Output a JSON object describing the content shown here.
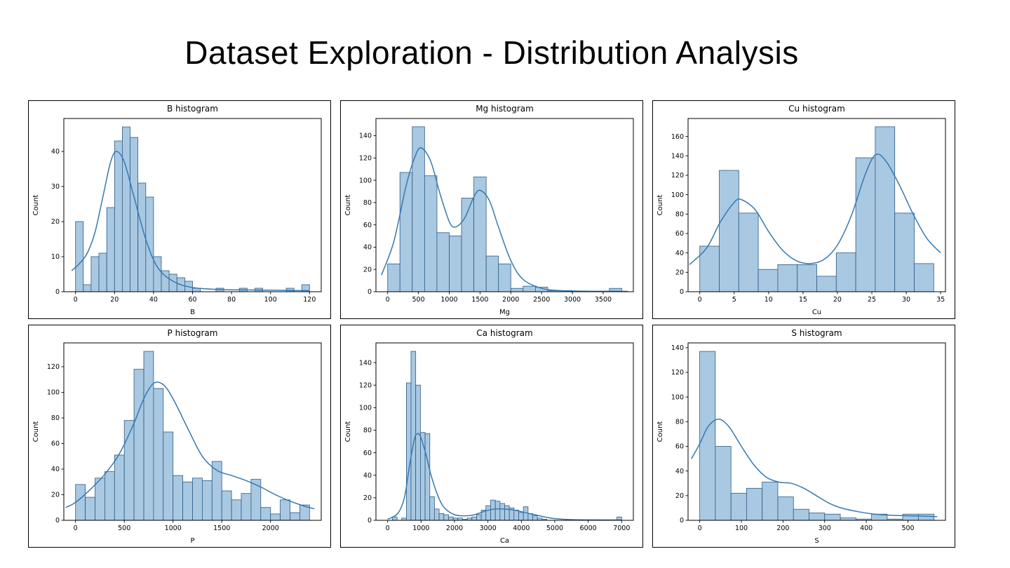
{
  "page": {
    "title": "Dataset Exploration - Distribution Analysis"
  },
  "style": {
    "bar_fill": "#a9c8e2",
    "bar_edge": "#2e5c85",
    "kde_color": "#3579b1",
    "spine_color": "#000000",
    "text_color": "#000000"
  },
  "chart_data": [
    {
      "type": "bar",
      "variant": "histogram+kde",
      "title": "B histogram",
      "xlabel": "B",
      "ylabel": "Count",
      "bin_start": 0,
      "bin_width": 4,
      "counts": [
        20,
        2,
        10,
        11,
        24,
        43,
        47,
        44,
        31,
        27,
        10,
        6,
        5,
        4,
        3,
        1,
        0,
        0,
        1,
        0,
        0,
        1,
        0,
        1,
        0,
        0,
        0,
        1,
        0,
        2
      ],
      "kde": {
        "x": [
          -2,
          2,
          6,
          10,
          14,
          18,
          21,
          25,
          30,
          36,
          42,
          50,
          60,
          75,
          90,
          105,
          120
        ],
        "y": [
          6,
          8,
          11,
          17,
          27,
          37,
          40,
          37,
          27,
          15,
          7,
          3,
          1.2,
          0.6,
          0.5,
          0.4,
          0.3
        ]
      },
      "xlim": [
        -6,
        126
      ],
      "ylim": [
        0,
        49.4
      ],
      "xticks": [
        0,
        20,
        40,
        60,
        80,
        100,
        120
      ],
      "yticks": [
        0,
        10,
        20,
        30,
        40
      ],
      "grid": false,
      "legend": null
    },
    {
      "type": "bar",
      "variant": "histogram+kde",
      "title": "Mg histogram",
      "xlabel": "Mg",
      "ylabel": "Count",
      "bin_start": 0,
      "bin_width": 200,
      "counts": [
        25,
        107,
        148,
        104,
        53,
        50,
        84,
        103,
        32,
        25,
        3,
        5,
        4,
        1,
        1,
        0,
        0,
        0,
        3
      ],
      "kde": {
        "x": [
          -100,
          100,
          300,
          450,
          550,
          700,
          850,
          1000,
          1100,
          1250,
          1400,
          1500,
          1650,
          1800,
          2000,
          2200,
          2500,
          2800,
          3200,
          3600,
          3900
        ],
        "y": [
          15,
          45,
          95,
          122,
          129,
          117,
          88,
          63,
          58,
          66,
          85,
          91,
          82,
          58,
          28,
          11,
          3,
          1,
          0.5,
          0.4,
          0.3
        ]
      },
      "xlim": [
        -190,
        3990
      ],
      "ylim": [
        0,
        155.4
      ],
      "xticks": [
        0,
        500,
        1000,
        1500,
        2000,
        2500,
        3000,
        3500
      ],
      "yticks": [
        0,
        20,
        40,
        60,
        80,
        100,
        120,
        140
      ],
      "grid": false,
      "legend": null
    },
    {
      "type": "bar",
      "variant": "histogram+kde",
      "title": "Cu histogram",
      "xlabel": "Cu",
      "ylabel": "Count",
      "bin_start": 0,
      "bin_width": 2.8333,
      "counts": [
        47,
        125,
        81,
        23,
        28,
        28,
        16,
        40,
        138,
        170,
        81,
        29
      ],
      "kde": {
        "x": [
          -1.5,
          1,
          3,
          5,
          6,
          8,
          10,
          12,
          14,
          16,
          18,
          20,
          22,
          24,
          25.5,
          27,
          29,
          31,
          33,
          35
        ],
        "y": [
          28,
          45,
          72,
          92,
          95,
          85,
          62,
          43,
          32,
          29,
          33,
          48,
          78,
          120,
          141,
          135,
          110,
          80,
          55,
          40
        ]
      },
      "xlim": [
        -1.7,
        35.7
      ],
      "ylim": [
        0,
        178.5
      ],
      "xticks": [
        0,
        5,
        10,
        15,
        20,
        25,
        30,
        35
      ],
      "yticks": [
        0,
        20,
        40,
        60,
        80,
        100,
        120,
        140,
        160
      ],
      "grid": false,
      "legend": null
    },
    {
      "type": "bar",
      "variant": "histogram+kde",
      "title": "P histogram",
      "xlabel": "P",
      "ylabel": "Count",
      "bin_start": 0,
      "bin_width": 100,
      "counts": [
        28,
        18,
        33,
        38,
        51,
        78,
        118,
        132,
        103,
        69,
        35,
        30,
        33,
        31,
        46,
        23,
        16,
        21,
        32,
        10,
        5,
        16,
        6,
        12
      ],
      "kde": {
        "x": [
          -100,
          0,
          150,
          300,
          450,
          600,
          700,
          800,
          900,
          1000,
          1150,
          1300,
          1450,
          1600,
          1750,
          1900,
          2050,
          2200,
          2350,
          2450
        ],
        "y": [
          10,
          14,
          24,
          36,
          52,
          76,
          95,
          107,
          106,
          95,
          72,
          50,
          39,
          35,
          31,
          26,
          20,
          15,
          11,
          9
        ]
      },
      "xlim": [
        -120,
        2520
      ],
      "ylim": [
        0,
        138.6
      ],
      "xticks": [
        0,
        500,
        1000,
        1500,
        2000
      ],
      "yticks": [
        0,
        20,
        40,
        60,
        80,
        100,
        120
      ],
      "grid": false,
      "legend": null
    },
    {
      "type": "bar",
      "variant": "histogram+kde",
      "title": "Ca histogram",
      "xlabel": "Ca",
      "ylabel": "Count",
      "bin_start": 0,
      "bin_width": 140,
      "counts": [
        0,
        3,
        0,
        2,
        122,
        150,
        120,
        78,
        77,
        21,
        10,
        6,
        5,
        3,
        2,
        2,
        1,
        2,
        3,
        5,
        9,
        13,
        18,
        17,
        15,
        13,
        11,
        9,
        7,
        12,
        6,
        4,
        2,
        1,
        0,
        0,
        0,
        0,
        0,
        0,
        0,
        0,
        0,
        0,
        0,
        0,
        0,
        0,
        0,
        3
      ],
      "kde": {
        "x": [
          0,
          300,
          500,
          650,
          800,
          900,
          1000,
          1150,
          1300,
          1500,
          1700,
          2000,
          2300,
          2600,
          2900,
          3200,
          3500,
          3800,
          4100,
          4400,
          4700,
          5000,
          5500,
          6000,
          6500,
          7000
        ],
        "y": [
          1,
          6,
          20,
          48,
          72,
          77,
          73,
          58,
          40,
          22,
          11,
          5,
          4,
          5,
          8,
          10,
          10,
          9,
          7,
          5,
          3,
          1.5,
          0.6,
          0.4,
          0.3,
          0.3
        ]
      },
      "xlim": [
        -350,
        7350
      ],
      "ylim": [
        0,
        157.5
      ],
      "xticks": [
        0,
        1000,
        2000,
        3000,
        4000,
        5000,
        6000,
        7000
      ],
      "yticks": [
        0,
        20,
        40,
        60,
        80,
        100,
        120,
        140
      ],
      "grid": false,
      "legend": null
    },
    {
      "type": "bar",
      "variant": "histogram+kde",
      "title": "S histogram",
      "xlabel": "S",
      "ylabel": "Count",
      "bin_start": 0,
      "bin_width": 37.5,
      "counts": [
        137,
        60,
        22,
        26,
        31,
        19,
        9,
        6,
        5,
        2,
        1,
        5,
        1,
        5,
        5
      ],
      "kde": {
        "x": [
          -20,
          0,
          20,
          45,
          70,
          100,
          130,
          160,
          190,
          220,
          250,
          280,
          310,
          340,
          380,
          420,
          470,
          520,
          570
        ],
        "y": [
          50,
          62,
          76,
          82,
          76,
          60,
          45,
          35,
          31,
          30,
          26,
          20,
          14,
          10,
          7,
          5,
          4,
          3.5,
          3
        ]
      },
      "xlim": [
        -28,
        590
      ],
      "ylim": [
        0,
        143.9
      ],
      "xticks": [
        0,
        100,
        200,
        300,
        400,
        500
      ],
      "yticks": [
        0,
        20,
        40,
        60,
        80,
        100,
        120,
        140
      ],
      "grid": false,
      "legend": null
    }
  ]
}
